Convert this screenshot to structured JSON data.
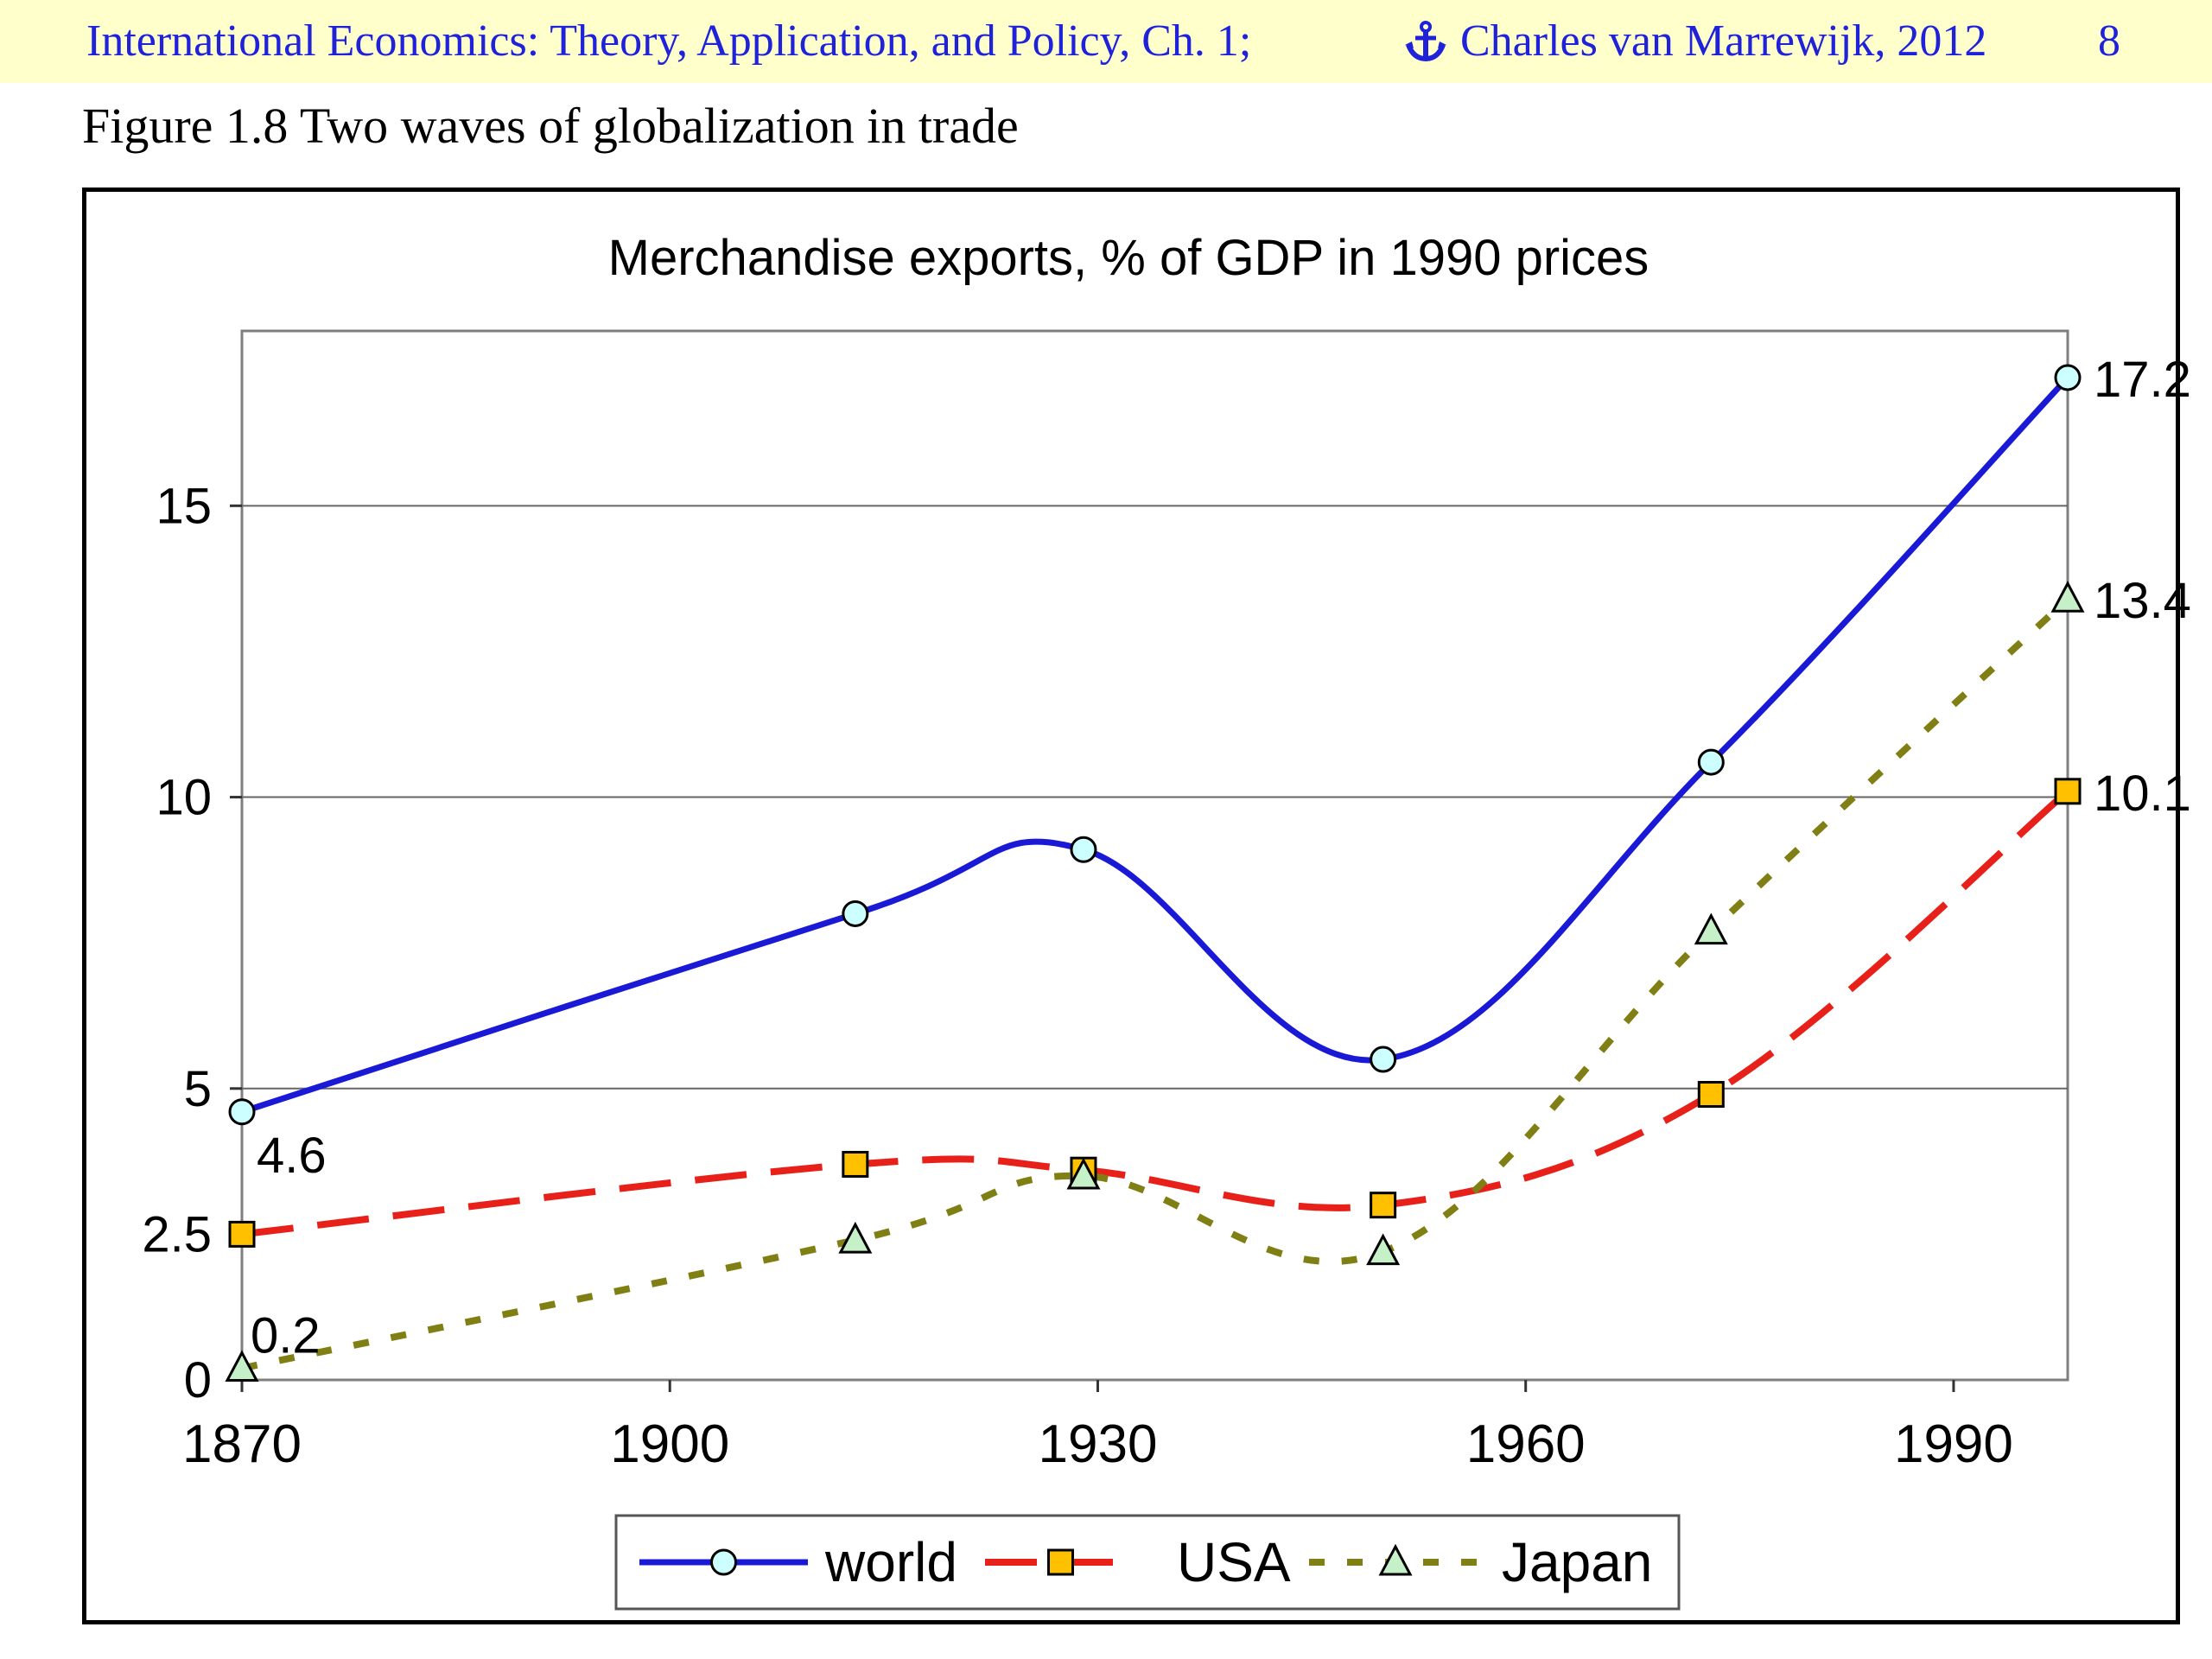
{
  "header": {
    "left_text": "International Economics: Theory, Application, and Policy, Ch. 1;",
    "anchor_icon": "anchor-icon",
    "author_text": "Charles van Marrewijk, 2012",
    "page_number": "8"
  },
  "figure_title": "Figure 1.8 Two waves of globalization in trade",
  "colors": {
    "header_bg": "#ffffcc",
    "header_text": "#1f22d8",
    "world": "#1a1ad6",
    "usa": "#e8201a",
    "japan": "#7f7f14",
    "world_marker": "#ccffff",
    "usa_marker": "#ffc000",
    "japan_marker": "#c6f0c8"
  },
  "chart_data": {
    "type": "line",
    "title": "Merchandise exports, % of GDP in 1990 prices",
    "xlabel": "",
    "ylabel": "",
    "xlim": [
      1870,
      1998
    ],
    "ylim": [
      0,
      18
    ],
    "x_ticks": [
      "1870",
      "1900",
      "1930",
      "1960",
      "1990"
    ],
    "y_ticks": [
      "0",
      "2.5",
      "5",
      "10",
      "15"
    ],
    "grid": "horizontal at 5, 10, 15",
    "legend": "bottom-center",
    "series": [
      {
        "name": "world",
        "style": "solid",
        "marker": "circle",
        "x": [
          1870,
          1913,
          1929,
          1950,
          1973,
          1998
        ],
        "y": [
          4.6,
          8.0,
          9.1,
          5.5,
          10.6,
          17.2
        ]
      },
      {
        "name": "USA",
        "style": "dashed",
        "marker": "square",
        "x": [
          1870,
          1913,
          1929,
          1950,
          1973,
          1998
        ],
        "y": [
          2.5,
          3.7,
          3.6,
          3.0,
          4.9,
          10.1
        ]
      },
      {
        "name": "Japan",
        "style": "dotted",
        "marker": "triangle",
        "x": [
          1870,
          1913,
          1929,
          1950,
          1973,
          1998
        ],
        "y": [
          0.2,
          2.4,
          3.5,
          2.2,
          7.7,
          13.4
        ]
      }
    ],
    "annotations": [
      "4.6",
      "0.2",
      "17.2",
      "13.4",
      "10.1"
    ]
  }
}
